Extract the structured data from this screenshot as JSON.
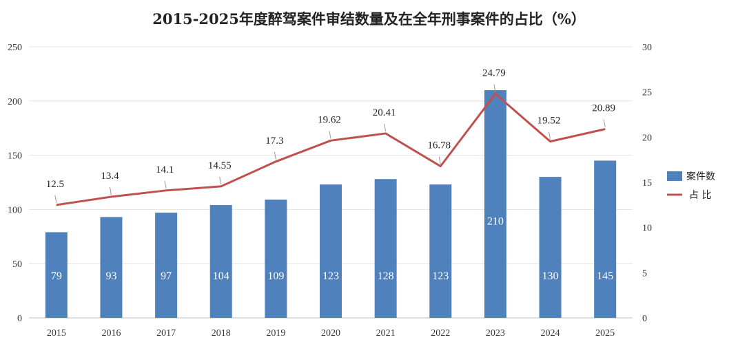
{
  "chart_data": {
    "type": "bar",
    "title": "2015-2025年度醉驾案件审结数量及在全年刑事案件的占比（%）",
    "categories": [
      "2015",
      "2016",
      "2017",
      "2018",
      "2019",
      "2020",
      "2021",
      "2022",
      "2023",
      "2024",
      "2025"
    ],
    "series": [
      {
        "name": "案件数",
        "type": "bar",
        "axis": "left",
        "color": "#4F81BD",
        "values": [
          79,
          93,
          97,
          104,
          109,
          123,
          128,
          123,
          210,
          130,
          145
        ]
      },
      {
        "name": "占 比",
        "type": "line",
        "axis": "right",
        "color": "#C0504D",
        "values": [
          12.5,
          13.4,
          14.1,
          14.55,
          17.3,
          19.62,
          20.41,
          16.78,
          24.79,
          19.52,
          20.89
        ]
      }
    ],
    "value_labels_line": [
      "12.5",
      "13.4",
      "14.1",
      "14.55",
      "17.3",
      "19.62",
      "20.41",
      "16.78",
      "24.79",
      "19.52",
      "20.89"
    ],
    "yleft": {
      "min": 0,
      "max": 250,
      "ticks": [
        0,
        50,
        100,
        150,
        200,
        250
      ]
    },
    "yright": {
      "min": 0,
      "max": 30,
      "ticks": [
        0,
        5,
        10,
        15,
        20,
        25,
        30
      ]
    },
    "grid": true,
    "legend_position": "right"
  }
}
